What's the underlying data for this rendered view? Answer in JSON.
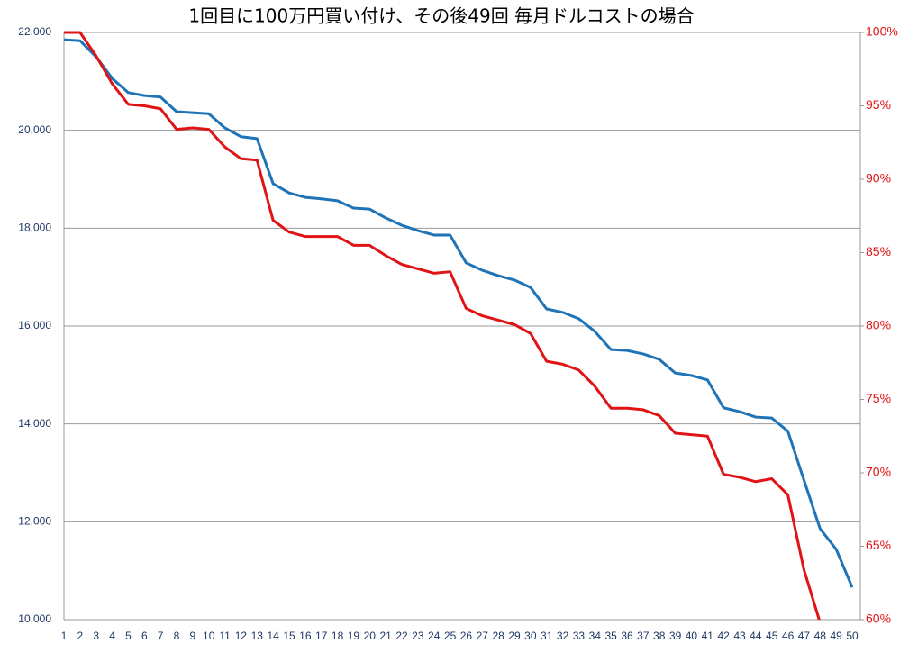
{
  "chart_data": {
    "type": "line",
    "title": "1回目に100万円買い付け、その後49回 毎月ドルコストの場合",
    "categories": [
      1,
      2,
      3,
      4,
      5,
      6,
      7,
      8,
      9,
      10,
      11,
      12,
      13,
      14,
      15,
      16,
      17,
      18,
      19,
      20,
      21,
      22,
      23,
      24,
      25,
      26,
      27,
      28,
      29,
      30,
      31,
      32,
      33,
      34,
      35,
      36,
      37,
      38,
      39,
      40,
      41,
      42,
      43,
      44,
      45,
      46,
      47,
      48,
      49,
      50
    ],
    "series": [
      {
        "color": "#1f74b8",
        "axis": "y",
        "values": [
          21850,
          21830,
          21500,
          21060,
          20770,
          20710,
          20680,
          20380,
          20360,
          20340,
          20050,
          19870,
          19830,
          18910,
          18720,
          18630,
          18600,
          18560,
          18410,
          18390,
          18210,
          18060,
          17950,
          17860,
          17860,
          17290,
          17140,
          17030,
          16940,
          16790,
          16350,
          16280,
          16150,
          15890,
          15520,
          15500,
          15430,
          15320,
          15040,
          14990,
          14900,
          14330,
          14250,
          14140,
          14120,
          13850,
          12850,
          11860,
          11440,
          10660
        ]
      },
      {
        "color": "#e01414",
        "axis": "y2",
        "values": [
          100,
          100,
          98.4,
          96.5,
          95.1,
          95.0,
          94.8,
          93.4,
          93.5,
          93.4,
          92.2,
          91.4,
          91.3,
          87.2,
          86.4,
          86.1,
          86.1,
          86.1,
          85.5,
          85.5,
          84.8,
          84.2,
          83.9,
          83.6,
          83.7,
          81.2,
          80.7,
          80.4,
          80.1,
          79.5,
          77.6,
          77.4,
          77.0,
          75.9,
          74.4,
          74.4,
          74.3,
          73.9,
          72.7,
          72.6,
          72.5,
          69.9,
          69.7,
          69.4,
          69.6,
          68.5,
          63.4,
          59.8,
          null,
          null
        ]
      }
    ],
    "ylim": [
      10000,
      22000
    ],
    "yticks": [
      {
        "value": 10000,
        "label": "10,000"
      },
      {
        "value": 12000,
        "label": "12,000"
      },
      {
        "value": 14000,
        "label": "14,000"
      },
      {
        "value": 16000,
        "label": "16,000"
      },
      {
        "value": 18000,
        "label": "18,000"
      },
      {
        "value": 20000,
        "label": "20,000"
      },
      {
        "value": 22000,
        "label": "22,000"
      }
    ],
    "y2lim": [
      60,
      100
    ],
    "y2ticks": [
      {
        "value": 60,
        "label": "60%"
      },
      {
        "value": 65,
        "label": "65%"
      },
      {
        "value": 70,
        "label": "70%"
      },
      {
        "value": 75,
        "label": "75%"
      },
      {
        "value": 80,
        "label": "80%"
      },
      {
        "value": 85,
        "label": "85%"
      },
      {
        "value": 90,
        "label": "90%"
      },
      {
        "value": 95,
        "label": "95%"
      },
      {
        "value": 100,
        "label": "100%"
      }
    ],
    "grid": true,
    "y2color": "#e01414",
    "ycolor": "#1f3864"
  }
}
